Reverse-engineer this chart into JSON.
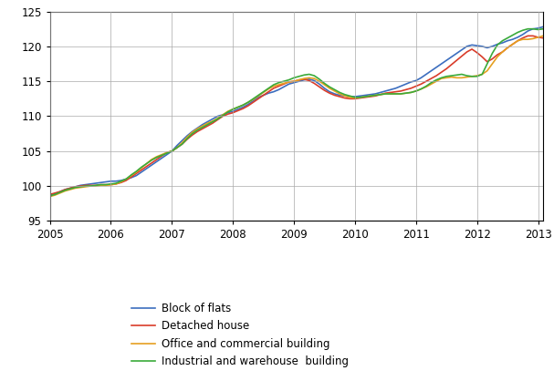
{
  "title": "",
  "xlim": [
    2005.0,
    2013.08
  ],
  "ylim": [
    95,
    125
  ],
  "yticks": [
    95,
    100,
    105,
    110,
    115,
    120,
    125
  ],
  "xticks": [
    2005,
    2006,
    2007,
    2008,
    2009,
    2010,
    2011,
    2012,
    2013
  ],
  "legend_labels": [
    "Block of flats",
    "Detached house",
    "Office and commercial building",
    "Industrial and warehouse  building"
  ],
  "line_colors": [
    "#3c6ebf",
    "#d93c2a",
    "#e6a020",
    "#3aaa3a"
  ],
  "line_width": 1.2,
  "grid_color": "#aaaaaa",
  "background_color": "#ffffff",
  "block_of_flats": [
    98.7,
    98.9,
    99.2,
    99.5,
    99.7,
    99.9,
    100.1,
    100.2,
    100.3,
    100.4,
    100.5,
    100.6,
    100.7,
    100.7,
    100.8,
    101.0,
    101.2,
    101.5,
    102.0,
    102.5,
    103.0,
    103.5,
    104.0,
    104.5,
    105.0,
    105.8,
    106.5,
    107.2,
    107.8,
    108.3,
    108.8,
    109.2,
    109.6,
    110.0,
    110.2,
    110.5,
    110.7,
    111.0,
    111.3,
    111.7,
    112.2,
    112.7,
    113.0,
    113.3,
    113.5,
    113.8,
    114.2,
    114.6,
    114.8,
    115.0,
    115.2,
    115.3,
    115.1,
    114.6,
    114.0,
    113.5,
    113.2,
    113.0,
    112.9,
    112.8,
    112.8,
    112.9,
    113.0,
    113.1,
    113.2,
    113.4,
    113.6,
    113.8,
    114.0,
    114.3,
    114.6,
    114.9,
    115.1,
    115.5,
    116.0,
    116.5,
    117.0,
    117.5,
    118.0,
    118.5,
    119.0,
    119.5,
    120.0,
    120.2,
    120.1,
    120.0,
    119.8,
    120.0,
    120.3,
    120.5,
    120.8,
    121.0,
    121.3,
    121.7,
    122.2,
    122.5,
    122.6,
    122.8,
    122.9,
    122.8
  ],
  "detached_house": [
    98.8,
    99.0,
    99.2,
    99.5,
    99.7,
    99.9,
    100.0,
    100.1,
    100.1,
    100.1,
    100.2,
    100.2,
    100.2,
    100.3,
    100.5,
    100.8,
    101.3,
    101.8,
    102.3,
    102.8,
    103.3,
    103.8,
    104.3,
    104.8,
    105.0,
    105.5,
    106.0,
    106.7,
    107.3,
    107.8,
    108.2,
    108.6,
    109.0,
    109.5,
    110.0,
    110.3,
    110.5,
    110.8,
    111.1,
    111.5,
    112.0,
    112.5,
    113.0,
    113.5,
    114.0,
    114.3,
    114.6,
    114.9,
    115.0,
    115.2,
    115.3,
    115.1,
    114.7,
    114.2,
    113.7,
    113.3,
    113.0,
    112.8,
    112.6,
    112.5,
    112.5,
    112.6,
    112.7,
    112.8,
    112.9,
    113.1,
    113.3,
    113.4,
    113.5,
    113.6,
    113.8,
    114.0,
    114.3,
    114.6,
    115.0,
    115.4,
    115.8,
    116.3,
    116.8,
    117.4,
    118.0,
    118.6,
    119.2,
    119.6,
    119.1,
    118.5,
    117.8,
    118.2,
    118.8,
    119.2,
    119.8,
    120.3,
    120.8,
    121.2,
    121.5,
    121.5,
    121.3,
    121.2,
    121.2,
    121.1
  ],
  "office_commercial": [
    98.5,
    98.7,
    99.0,
    99.3,
    99.5,
    99.7,
    99.8,
    99.9,
    100.0,
    100.0,
    100.1,
    100.1,
    100.2,
    100.3,
    100.6,
    101.0,
    101.5,
    102.0,
    102.6,
    103.2,
    103.8,
    104.2,
    104.5,
    104.8,
    105.0,
    105.5,
    106.2,
    107.0,
    107.7,
    108.2,
    108.6,
    109.0,
    109.3,
    109.7,
    110.2,
    110.7,
    111.0,
    111.3,
    111.6,
    112.0,
    112.4,
    112.9,
    113.4,
    113.9,
    114.3,
    114.5,
    114.7,
    114.9,
    115.0,
    115.2,
    115.4,
    115.5,
    115.4,
    115.0,
    114.5,
    114.0,
    113.6,
    113.2,
    112.9,
    112.7,
    112.6,
    112.7,
    112.8,
    112.9,
    113.0,
    113.1,
    113.2,
    113.2,
    113.2,
    113.2,
    113.3,
    113.4,
    113.6,
    113.9,
    114.2,
    114.6,
    115.0,
    115.4,
    115.5,
    115.6,
    115.5,
    115.5,
    115.6,
    115.7,
    115.8,
    116.0,
    116.5,
    117.5,
    118.5,
    119.2,
    119.8,
    120.3,
    120.8,
    121.0,
    121.0,
    121.1,
    121.3,
    121.5,
    121.6,
    121.5
  ],
  "industrial_warehouse": [
    98.6,
    98.8,
    99.1,
    99.4,
    99.6,
    99.8,
    99.9,
    100.0,
    100.0,
    100.1,
    100.2,
    100.2,
    100.3,
    100.4,
    100.7,
    101.0,
    101.6,
    102.1,
    102.7,
    103.2,
    103.7,
    104.1,
    104.4,
    104.7,
    105.0,
    105.5,
    106.0,
    106.8,
    107.5,
    108.0,
    108.4,
    108.8,
    109.2,
    109.6,
    110.1,
    110.6,
    111.0,
    111.3,
    111.6,
    112.0,
    112.5,
    113.0,
    113.5,
    114.0,
    114.5,
    114.8,
    115.0,
    115.2,
    115.5,
    115.7,
    115.9,
    116.0,
    115.8,
    115.3,
    114.7,
    114.2,
    113.8,
    113.4,
    113.1,
    112.9,
    112.7,
    112.7,
    112.8,
    112.9,
    113.0,
    113.1,
    113.2,
    113.2,
    113.2,
    113.2,
    113.3,
    113.4,
    113.6,
    113.9,
    114.3,
    114.8,
    115.2,
    115.5,
    115.7,
    115.8,
    115.9,
    116.0,
    115.8,
    115.7,
    115.7,
    116.0,
    117.5,
    119.0,
    120.2,
    120.8,
    121.2,
    121.6,
    122.0,
    122.3,
    122.5,
    122.5,
    122.4,
    122.5,
    122.6,
    122.7
  ]
}
